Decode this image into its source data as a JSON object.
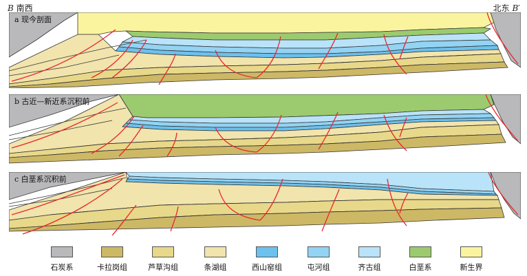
{
  "header": {
    "left_letter": "B",
    "left_text": "南西",
    "right_text": "北东",
    "right_letter": "B′"
  },
  "panels": [
    {
      "label": "a 现今剖面"
    },
    {
      "label": "b 古近—新近系沉积前"
    },
    {
      "label": "c 白垩系沉积前"
    }
  ],
  "colors": {
    "carboniferous": "#b9b8ba",
    "kalagang": "#cdb866",
    "lucaogou": "#e8d88a",
    "tiaohu": "#f1e4ad",
    "xishanyao": "#6cc1ee",
    "toutunhe": "#93d3f3",
    "qigu": "#b9e3f8",
    "cretaceous": "#9ccb6f",
    "cenozoic": "#fbf49f",
    "fault": "#e8262c"
  },
  "legend": [
    {
      "label": "石炭系",
      "color_key": "carboniferous"
    },
    {
      "label": "卡拉岗组",
      "color_key": "kalagang"
    },
    {
      "label": "芦草沟组",
      "color_key": "lucaogou"
    },
    {
      "label": "条湖组",
      "color_key": "tiaohu"
    },
    {
      "label": "西山窑组",
      "color_key": "xishanyao"
    },
    {
      "label": "屯河组",
      "color_key": "toutunhe"
    },
    {
      "label": "齐古组",
      "color_key": "qigu"
    },
    {
      "label": "白垩系",
      "color_key": "cretaceous"
    },
    {
      "label": "新生界",
      "color_key": "cenozoic"
    }
  ]
}
